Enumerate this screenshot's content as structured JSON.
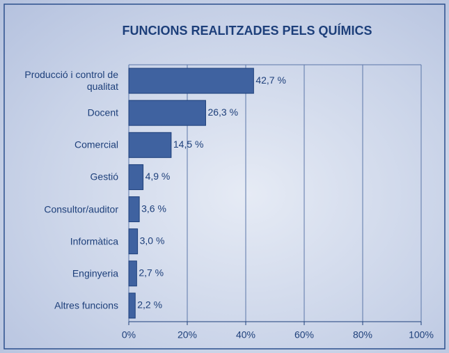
{
  "chart_data": {
    "type": "bar",
    "orientation": "horizontal",
    "title": "FUNCIONS REALITZADES PELS QUÍMICS",
    "categories": [
      "Producció i control de qualitat",
      "Docent",
      "Comercial",
      "Gestió",
      "Consultor/auditor",
      "Informàtica",
      "Enginyeria",
      "Altres funcions"
    ],
    "values": [
      42.7,
      26.3,
      14.5,
      4.9,
      3.6,
      3.0,
      2.7,
      2.2
    ],
    "value_labels": [
      "42,7 %",
      "26,3 %",
      "14,5 %",
      "4,9 %",
      "3,6 %",
      "3,0 %",
      "2,7 %",
      "2,2 %"
    ],
    "color": "#3f62a0",
    "xlim": [
      0,
      100
    ],
    "xticks": [
      {
        "value": 0,
        "label": "0%"
      },
      {
        "value": 20,
        "label": "20%"
      },
      {
        "value": 40,
        "label": "40%"
      },
      {
        "value": 60,
        "label": "60%"
      },
      {
        "value": 80,
        "label": "80%"
      },
      {
        "value": 100,
        "label": "100%"
      }
    ],
    "grid": true
  }
}
